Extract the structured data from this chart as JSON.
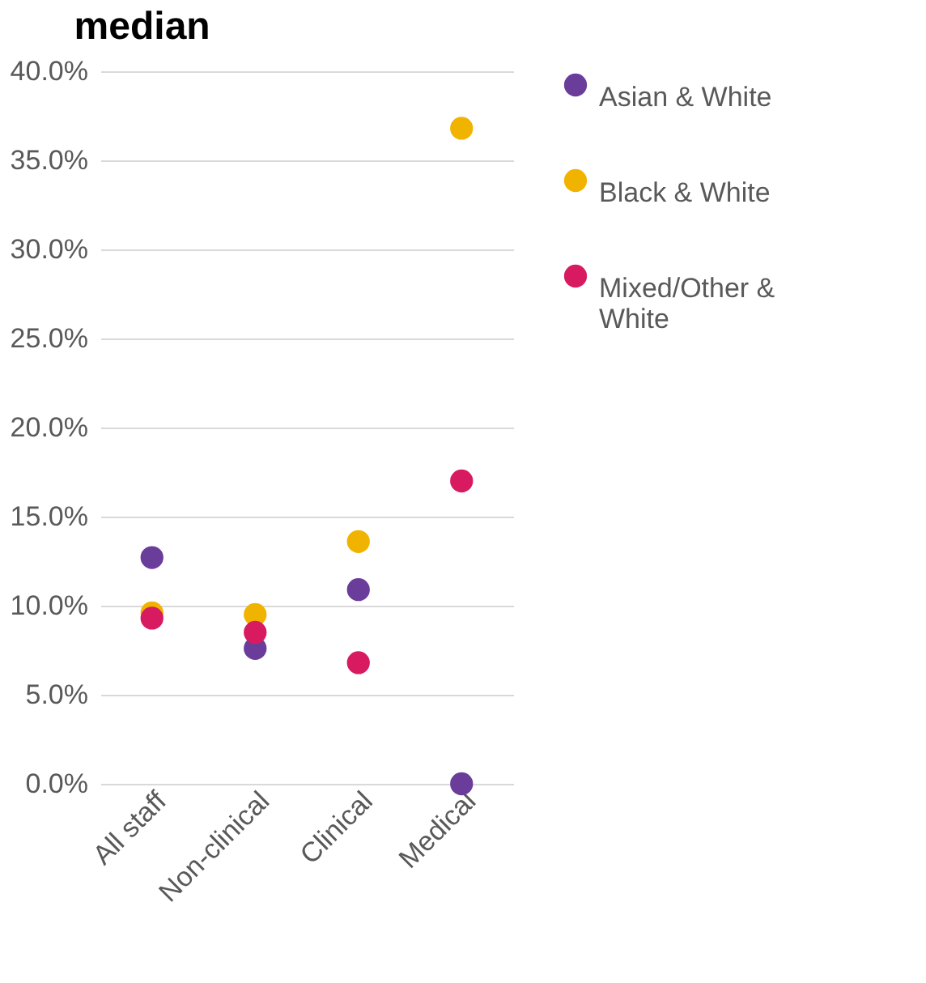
{
  "chart_data": {
    "type": "scatter",
    "title": "median",
    "categories": [
      "All staff",
      "Non-clinical",
      "Clinical",
      "Medical"
    ],
    "series": [
      {
        "name": "Asian & White",
        "color": "#6a3d9a",
        "values": [
          12.7,
          7.6,
          10.9,
          0
        ]
      },
      {
        "name": "Black & White",
        "color": "#f0b400",
        "values": [
          9.6,
          9.5,
          13.6,
          36.8
        ]
      },
      {
        "name": "Mixed/Other & White",
        "color": "#d81b60",
        "values": [
          9.3,
          8.5,
          6.8,
          17.0
        ]
      }
    ],
    "ylim": [
      0,
      40
    ],
    "yticks": [
      {
        "value": 0,
        "label": "0.0%"
      },
      {
        "value": 5,
        "label": "5.0%"
      },
      {
        "value": 10,
        "label": "10.0%"
      },
      {
        "value": 15,
        "label": "15.0%"
      },
      {
        "value": 20,
        "label": "20.0%"
      },
      {
        "value": 25,
        "label": "25.0%"
      },
      {
        "value": 30,
        "label": "30.0%"
      },
      {
        "value": 35,
        "label": "35.0%"
      },
      {
        "value": 40,
        "label": "40.0%"
      }
    ],
    "grid": "y",
    "legend": "right",
    "marker": "circle"
  }
}
